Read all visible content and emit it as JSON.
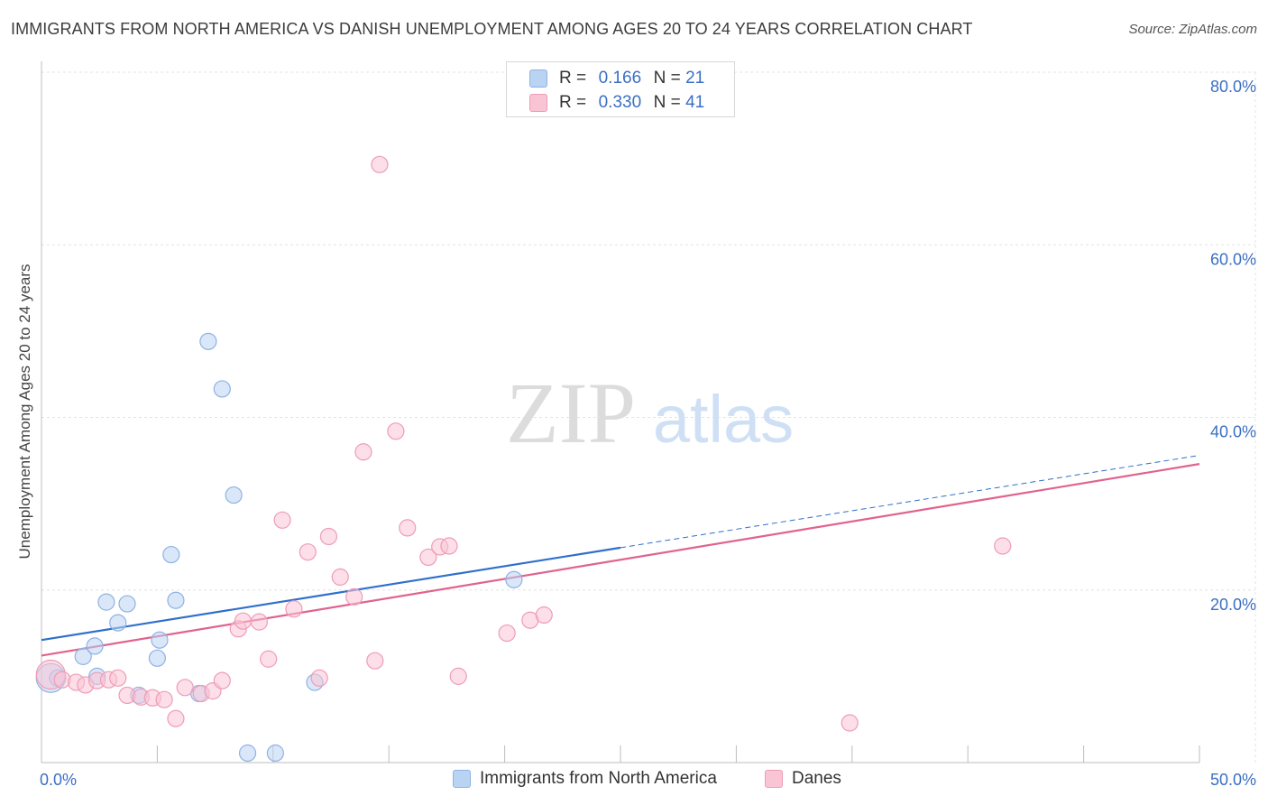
{
  "header": {
    "title": "IMMIGRANTS FROM NORTH AMERICA VS DANISH UNEMPLOYMENT AMONG AGES 20 TO 24 YEARS CORRELATION CHART",
    "source": "Source: ZipAtlas.com"
  },
  "watermark": {
    "zip": "ZIP",
    "atlas": "atlas"
  },
  "legend_top": {
    "rows": [
      {
        "r_label": "R =",
        "r_value": "0.166",
        "n_label": "N =",
        "n_value": "21"
      },
      {
        "r_label": "R =",
        "r_value": "0.330",
        "n_label": "N =",
        "n_value": "41"
      }
    ]
  },
  "legend_bottom": {
    "items": [
      {
        "label": "Immigrants from North America"
      },
      {
        "label": "Danes"
      }
    ]
  },
  "colors": {
    "blue_fill": "#b9d3f3",
    "blue_stroke": "#8fb2e3",
    "blue_line": "#2f6fcc",
    "pink_fill": "#f9c5d5",
    "pink_stroke": "#ef9cb6",
    "pink_line": "#e0638e",
    "axis_label": "#3a6fc4",
    "grid": "#e3e3e3"
  },
  "chart_data": {
    "type": "scatter",
    "title": "IMMIGRANTS FROM NORTH AMERICA VS DANISH UNEMPLOYMENT AMONG AGES 20 TO 24 YEARS CORRELATION CHART",
    "xlabel": "",
    "ylabel": "Unemployment Among Ages 20 to 24 years",
    "xlim": [
      0,
      50
    ],
    "ylim": [
      0,
      80
    ],
    "x_tick_labels": [
      "0.0%",
      "50.0%"
    ],
    "y_ticks": [
      {
        "value": 20,
        "label": "20.0%"
      },
      {
        "value": 40,
        "label": "40.0%"
      },
      {
        "value": 60,
        "label": "60.0%"
      },
      {
        "value": 80,
        "label": "80.0%"
      }
    ],
    "series": [
      {
        "name": "Immigrants from North America",
        "color": "blue",
        "points": [
          [
            0.4,
            9.8,
            16
          ],
          [
            0.7,
            9.8,
            9
          ],
          [
            2.4,
            10.0,
            9
          ],
          [
            1.8,
            12.3,
            9
          ],
          [
            2.3,
            13.5,
            9
          ],
          [
            2.8,
            18.6,
            9
          ],
          [
            3.3,
            16.2,
            9
          ],
          [
            3.7,
            18.4,
            9
          ],
          [
            4.2,
            7.8,
            9
          ],
          [
            5.0,
            12.1,
            9
          ],
          [
            5.1,
            14.2,
            9
          ],
          [
            5.6,
            24.1,
            9
          ],
          [
            5.8,
            18.8,
            9
          ],
          [
            6.8,
            8.0,
            9
          ],
          [
            7.2,
            48.8,
            9
          ],
          [
            7.8,
            43.3,
            9
          ],
          [
            8.3,
            31.0,
            9
          ],
          [
            8.9,
            1.1,
            9
          ],
          [
            10.1,
            1.1,
            9
          ],
          [
            11.8,
            9.3,
            9
          ],
          [
            20.4,
            21.2,
            9
          ]
        ],
        "trend": {
          "x0": 0,
          "y0": 14.2,
          "x1": 25,
          "y1": 24.9,
          "dash_to_x": 50,
          "dash_to_y": 35.6
        }
      },
      {
        "name": "Danes",
        "color": "pink",
        "points": [
          [
            0.4,
            10.2,
            16
          ],
          [
            0.9,
            9.6,
            9
          ],
          [
            1.5,
            9.3,
            9
          ],
          [
            1.9,
            9.0,
            9
          ],
          [
            2.4,
            9.5,
            9
          ],
          [
            2.9,
            9.6,
            9
          ],
          [
            3.3,
            9.8,
            9
          ],
          [
            3.7,
            7.8,
            9
          ],
          [
            4.3,
            7.6,
            9
          ],
          [
            4.8,
            7.5,
            9
          ],
          [
            5.3,
            7.3,
            9
          ],
          [
            5.8,
            5.1,
            9
          ],
          [
            6.2,
            8.7,
            9
          ],
          [
            6.9,
            8.0,
            9
          ],
          [
            7.4,
            8.3,
            9
          ],
          [
            7.8,
            9.5,
            9
          ],
          [
            8.5,
            15.5,
            9
          ],
          [
            8.7,
            16.4,
            9
          ],
          [
            9.4,
            16.3,
            9
          ],
          [
            9.8,
            12.0,
            9
          ],
          [
            10.4,
            28.1,
            9
          ],
          [
            10.9,
            17.8,
            9
          ],
          [
            11.5,
            24.4,
            9
          ],
          [
            12.0,
            9.8,
            9
          ],
          [
            12.4,
            26.2,
            9
          ],
          [
            12.9,
            21.5,
            9
          ],
          [
            13.5,
            19.2,
            9
          ],
          [
            13.9,
            36.0,
            9
          ],
          [
            14.4,
            11.8,
            9
          ],
          [
            14.6,
            69.3,
            9
          ],
          [
            15.3,
            38.4,
            9
          ],
          [
            15.8,
            27.2,
            9
          ],
          [
            16.7,
            23.8,
            9
          ],
          [
            17.2,
            25.0,
            9
          ],
          [
            17.6,
            25.1,
            9
          ],
          [
            18.0,
            10.0,
            9
          ],
          [
            20.1,
            15.0,
            9
          ],
          [
            21.1,
            16.5,
            9
          ],
          [
            21.7,
            17.1,
            9
          ],
          [
            34.9,
            4.6,
            9
          ],
          [
            41.5,
            25.1,
            9
          ]
        ],
        "trend": {
          "x0": 0,
          "y0": 12.4,
          "x1": 50,
          "y1": 34.6
        }
      }
    ]
  }
}
